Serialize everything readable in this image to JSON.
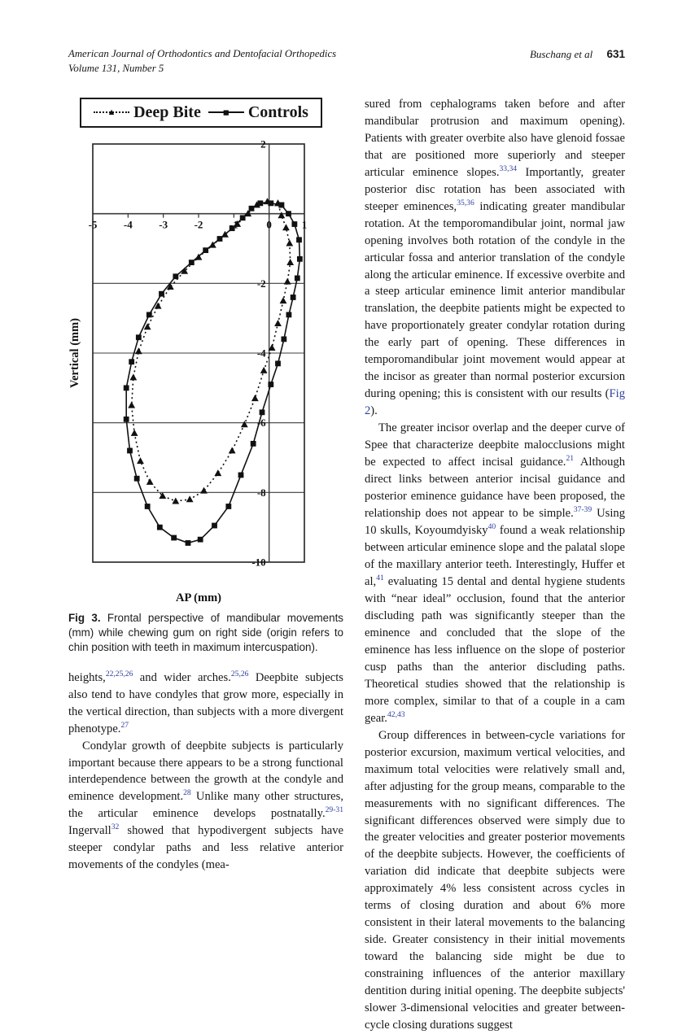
{
  "header": {
    "journal_line1": "American Journal of Orthodontics and Dentofacial Orthopedics",
    "journal_line2": "Volume 131, Number 5",
    "authors": "Buschang et al",
    "page_number": "631"
  },
  "figure": {
    "caption_label": "Fig 3.",
    "caption_text": "Frontal perspective of mandibular movements (mm) while chewing gum on right side (origin refers to chin position with teeth in maximum intercuspation)."
  },
  "chart_data": {
    "type": "line",
    "title": "",
    "xlabel": "AP (mm)",
    "ylabel": "Vertical (mm)",
    "xlim": [
      -5,
      1
    ],
    "ylim": [
      -10,
      2
    ],
    "x_ticks": [
      -5,
      -4,
      -3,
      -2,
      -1,
      0,
      1
    ],
    "y_ticks": [
      2,
      0,
      -2,
      -4,
      -6,
      -8,
      -10
    ],
    "grid": "horizontal-only",
    "legend_position": "top",
    "series": [
      {
        "name": "Deep Bite",
        "marker": "triangle",
        "line": "dotted",
        "points": [
          [
            0.25,
            0.3
          ],
          [
            -0.05,
            0.35
          ],
          [
            -0.35,
            0.25
          ],
          [
            -0.6,
            0.0
          ],
          [
            -0.9,
            -0.3
          ],
          [
            -1.25,
            -0.6
          ],
          [
            -1.6,
            -0.9
          ],
          [
            -2.0,
            -1.25
          ],
          [
            -2.4,
            -1.65
          ],
          [
            -2.8,
            -2.1
          ],
          [
            -3.15,
            -2.65
          ],
          [
            -3.45,
            -3.25
          ],
          [
            -3.7,
            -3.95
          ],
          [
            -3.85,
            -4.7
          ],
          [
            -3.9,
            -5.5
          ],
          [
            -3.82,
            -6.3
          ],
          [
            -3.65,
            -7.1
          ],
          [
            -3.38,
            -7.7
          ],
          [
            -3.02,
            -8.1
          ],
          [
            -2.65,
            -8.25
          ],
          [
            -2.25,
            -8.2
          ],
          [
            -1.85,
            -7.95
          ],
          [
            -1.45,
            -7.45
          ],
          [
            -1.05,
            -6.8
          ],
          [
            -0.7,
            -6.05
          ],
          [
            -0.4,
            -5.3
          ],
          [
            -0.15,
            -4.5
          ],
          [
            0.08,
            -3.85
          ],
          [
            0.25,
            -3.15
          ],
          [
            0.4,
            -2.5
          ],
          [
            0.52,
            -1.95
          ],
          [
            0.6,
            -1.4
          ],
          [
            0.58,
            -0.85
          ],
          [
            0.48,
            -0.4
          ],
          [
            0.35,
            -0.05
          ],
          [
            0.25,
            0.3
          ]
        ]
      },
      {
        "name": "Controls",
        "marker": "square",
        "line": "solid",
        "points": [
          [
            0.35,
            0.25
          ],
          [
            0.05,
            0.3
          ],
          [
            -0.25,
            0.3
          ],
          [
            -0.5,
            0.15
          ],
          [
            -0.75,
            -0.12
          ],
          [
            -1.05,
            -0.42
          ],
          [
            -1.4,
            -0.72
          ],
          [
            -1.8,
            -1.05
          ],
          [
            -2.2,
            -1.4
          ],
          [
            -2.65,
            -1.8
          ],
          [
            -3.05,
            -2.3
          ],
          [
            -3.4,
            -2.9
          ],
          [
            -3.7,
            -3.55
          ],
          [
            -3.9,
            -4.25
          ],
          [
            -4.05,
            -5.0
          ],
          [
            -4.05,
            -5.9
          ],
          [
            -3.95,
            -6.8
          ],
          [
            -3.75,
            -7.6
          ],
          [
            -3.45,
            -8.4
          ],
          [
            -3.1,
            -9.0
          ],
          [
            -2.7,
            -9.3
          ],
          [
            -2.3,
            -9.45
          ],
          [
            -1.95,
            -9.35
          ],
          [
            -1.55,
            -8.95
          ],
          [
            -1.15,
            -8.4
          ],
          [
            -0.8,
            -7.5
          ],
          [
            -0.45,
            -6.6
          ],
          [
            -0.2,
            -5.7
          ],
          [
            0.05,
            -4.9
          ],
          [
            0.25,
            -4.3
          ],
          [
            0.42,
            -3.6
          ],
          [
            0.56,
            -2.9
          ],
          [
            0.68,
            -2.4
          ],
          [
            0.8,
            -1.85
          ],
          [
            0.87,
            -1.3
          ],
          [
            0.85,
            -0.75
          ],
          [
            0.72,
            -0.3
          ],
          [
            0.55,
            0.0
          ],
          [
            0.35,
            0.25
          ]
        ]
      }
    ]
  },
  "left_column": {
    "paragraphs": [
      {
        "indent": false,
        "runs": [
          {
            "t": "heights,"
          },
          {
            "t": "22,25,26",
            "sup": true
          },
          {
            "t": " and wider arches."
          },
          {
            "t": "25,26",
            "sup": true
          },
          {
            "t": " Deepbite subjects also tend to have condyles that grow more, especially in the vertical direction, than subjects with a more divergent phenotype."
          },
          {
            "t": "27",
            "sup": true
          }
        ]
      },
      {
        "indent": true,
        "runs": [
          {
            "t": "Condylar growth of deepbite subjects is particularly important because there appears to be a strong functional interdependence between the growth at the condyle and eminence development."
          },
          {
            "t": "28",
            "sup": true
          },
          {
            "t": " Unlike many other structures, the articular eminence develops postnatally."
          },
          {
            "t": "29-31",
            "sup": true
          },
          {
            "t": " Ingervall"
          },
          {
            "t": "32",
            "sup": true
          },
          {
            "t": " showed that hypodivergent subjects have steeper condylar paths and less relative anterior movements of the condyles (mea-"
          }
        ]
      }
    ]
  },
  "right_column": {
    "paragraphs": [
      {
        "indent": false,
        "runs": [
          {
            "t": "sured from cephalograms taken before and after mandibular protrusion and maximum opening). Patients with greater overbite also have glenoid fossae that are positioned more superiorly and steeper articular eminence slopes."
          },
          {
            "t": "33,34",
            "sup": true
          },
          {
            "t": " Importantly, greater posterior disc rotation has been associated with steeper eminences,"
          },
          {
            "t": "35,36",
            "sup": true
          },
          {
            "t": " indicating greater mandibular rotation. At the temporomandibular joint, normal jaw opening involves both rotation of the condyle in the articular fossa and anterior translation of the condyle along the articular eminence. If excessive overbite and a steep articular eminence limit anterior mandibular translation, the deepbite patients might be expected to have proportionately greater condylar rotation during the early part of opening. These differences in temporomandibular joint movement would appear at the incisor as greater than normal posterior excursion during opening; this is consistent with our results ("
          },
          {
            "t": "Fig 2",
            "link": true
          },
          {
            "t": ")."
          }
        ]
      },
      {
        "indent": true,
        "runs": [
          {
            "t": "The greater incisor overlap and the deeper curve of Spee that characterize deepbite malocclusions might be expected to affect incisal guidance."
          },
          {
            "t": "21",
            "sup": true
          },
          {
            "t": " Although direct links between anterior incisal guidance and posterior eminence guidance have been proposed, the relationship does not appear to be simple."
          },
          {
            "t": "37-39",
            "sup": true
          },
          {
            "t": " Using 10 skulls, Koyoumdyisky"
          },
          {
            "t": "40",
            "sup": true
          },
          {
            "t": " found a weak relationship between articular eminence slope and the palatal slope of the maxillary anterior teeth. Interestingly, Huffer et al,"
          },
          {
            "t": "41",
            "sup": true
          },
          {
            "t": " evaluating 15 dental and dental hygiene students with “near ideal” occlusion, found that the anterior discluding path was significantly steeper than the eminence and concluded that the slope of the eminence has less influence on the slope of posterior cusp paths than the anterior discluding paths. Theoretical studies showed that the relationship is more complex, similar to that of a couple in a cam gear."
          },
          {
            "t": "42,43",
            "sup": true
          }
        ]
      },
      {
        "indent": true,
        "runs": [
          {
            "t": "Group differences in between-cycle variations for posterior excursion, maximum vertical velocities, and maximum total velocities were relatively small and, after adjusting for the group means, comparable to the measurements with no significant differences. The significant differences observed were simply due to the greater velocities and greater posterior movements of the deepbite subjects. However, the coefficients of variation did indicate that deepbite subjects were approximately 4% less consistent across cycles in terms of closing duration and about 6% more consistent in their lateral movements to the balancing side. Greater consistency in their initial movements toward the balancing side might be due to constraining influences of the anterior maxillary dentition during initial opening. The deepbite subjects' slower 3-dimensional velocities and greater between-cycle closing durations suggest"
          }
        ]
      }
    ]
  },
  "legend": {
    "marker_triangle": "▲",
    "marker_square": "■"
  }
}
